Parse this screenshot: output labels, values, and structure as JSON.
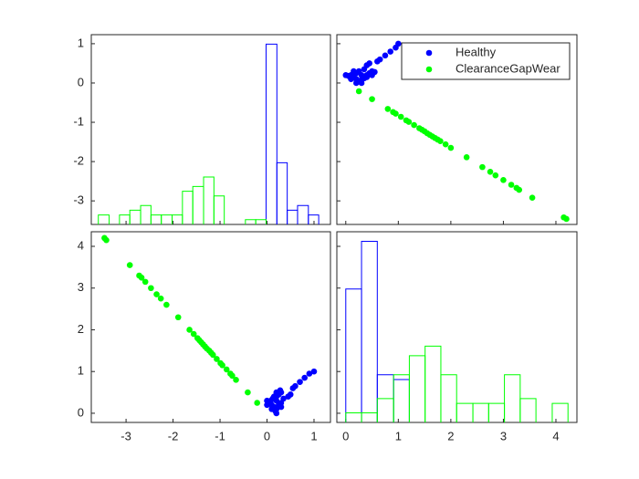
{
  "chart_data": {
    "type": "scatter-matrix",
    "variables": [
      {
        "lim": [
          -3.74,
          1.35
        ],
        "ticks": [
          -3,
          -2,
          -1,
          0,
          1
        ],
        "bins": [
          -3.59,
          -3.36,
          -3.14,
          -2.92,
          -2.69,
          -2.47,
          -2.25,
          -2.02,
          -1.8,
          -1.58,
          -1.35,
          -1.13,
          -0.91,
          -0.69,
          -0.46,
          -0.24,
          -0.02,
          0.21,
          0.43,
          0.65,
          0.88,
          1.1
        ]
      },
      {
        "lim": [
          -0.17,
          4.4
        ],
        "ticks": [
          0,
          1,
          2,
          3,
          4
        ],
        "bins": [
          0,
          0.3,
          0.6,
          0.91,
          1.21,
          1.51,
          1.81,
          2.11,
          2.42,
          2.72,
          3.02,
          3.32,
          3.62,
          3.93,
          4.23
        ]
      }
    ],
    "row_lims": [
      [
        -3.6,
        1.23
      ],
      [
        -0.22,
        4.35
      ]
    ],
    "row_ticks": [
      [
        -3,
        -2,
        -1,
        0,
        1
      ],
      [
        0,
        1,
        2,
        3,
        4
      ]
    ],
    "series": [
      {
        "name": "Healthy",
        "color": "#0000ff",
        "data": [
          [
            0.2,
            0.18,
            0.2,
            0.15,
            0.1,
            0.05,
            0.08,
            0.12,
            0.2,
            0.25,
            0.3,
            0.28,
            0.2,
            0.25,
            0.3,
            0.3,
            0.35,
            0.45,
            0.5,
            0.55,
            0.6,
            0.7,
            0.8,
            0.9,
            1.0,
            0.15,
            0.2,
            0.0,
            0.0,
            0.1
          ],
          [
            0.0,
            0.05,
            0.1,
            0.15,
            0.2,
            0.25,
            0.3,
            0.35,
            0.4,
            0.45,
            0.5,
            0.55,
            0.3,
            0.2,
            0.15,
            0.25,
            0.35,
            0.4,
            0.45,
            0.6,
            0.65,
            0.75,
            0.85,
            0.95,
            1.0,
            0.4,
            0.5,
            0.3,
            0.2,
            0.1
          ]
        ],
        "hist": [
          [
            0,
            0,
            0,
            0,
            0,
            0,
            0,
            0,
            0,
            0,
            0,
            0,
            0,
            0,
            0,
            0,
            38,
            13,
            3,
            4,
            2
          ],
          [
            28,
            38,
            10,
            9,
            0,
            0,
            0,
            0,
            0,
            0,
            0,
            0,
            0,
            0
          ]
        ]
      },
      {
        "name": "ClearanceGapWear",
        "color": "#00ff00",
        "data": [
          [
            -0.21,
            -0.41,
            -0.66,
            -0.74,
            -0.78,
            -0.86,
            -0.95,
            -0.99,
            -1.07,
            -1.15,
            -1.19,
            -1.23,
            -1.28,
            -1.32,
            -1.36,
            -1.4,
            -1.44,
            -1.48,
            -1.56,
            -1.65,
            -1.89,
            -2.14,
            -2.26,
            -2.35,
            -2.47,
            -2.59,
            -2.67,
            -2.72,
            -2.92,
            -3.42,
            -3.46
          ],
          [
            0.25,
            0.5,
            0.8,
            0.9,
            0.95,
            1.05,
            1.15,
            1.2,
            1.3,
            1.4,
            1.45,
            1.5,
            1.55,
            1.6,
            1.65,
            1.7,
            1.75,
            1.8,
            1.9,
            2.0,
            2.3,
            2.6,
            2.75,
            2.85,
            3.0,
            3.15,
            3.25,
            3.3,
            3.55,
            4.15,
            4.2
          ]
        ],
        "hist": [
          [
            2,
            0,
            2,
            3,
            4,
            2,
            2,
            2,
            7,
            8,
            10,
            6,
            0,
            0,
            1,
            1,
            0,
            0,
            0,
            0,
            0
          ],
          [
            2,
            2,
            5,
            10,
            14,
            16,
            10,
            4,
            4,
            4,
            10,
            5,
            0,
            4
          ]
        ]
      }
    ],
    "legend": "northeast"
  }
}
